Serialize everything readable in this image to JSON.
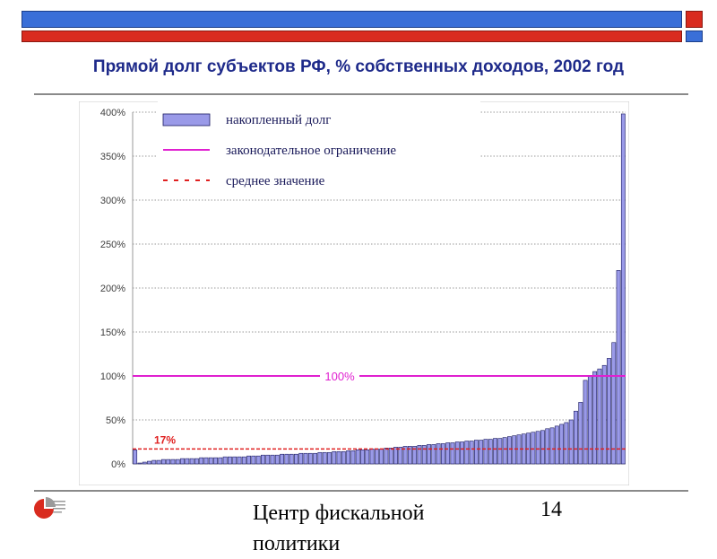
{
  "slide": {
    "title": "Прямой долг субъектов РФ, % собственных доходов, 2002 год",
    "footer": "Центр фискальной политики",
    "page_number": "14",
    "logo_icon": "center-fiscal-policy-logo-icon"
  },
  "colors": {
    "top_bar_blue": "#3a6fd8",
    "top_bar_red": "#d92b1f",
    "title": "#1e2a8a",
    "bar_fill": "#9a9ae8",
    "bar_stroke": "#1a1a60",
    "limit_line": "#e020d0",
    "mean_line": "#e02020"
  },
  "chart_data": {
    "type": "bar",
    "ylim": [
      0,
      400
    ],
    "yticks": [
      "0%",
      "50%",
      "100%",
      "150%",
      "200%",
      "250%",
      "300%",
      "350%",
      "400%"
    ],
    "grid": true,
    "legend_position": "top-left",
    "series": [
      {
        "name": "накопленный долг",
        "values": [
          16,
          1,
          2,
          3,
          4,
          4,
          5,
          5,
          5,
          5,
          6,
          6,
          6,
          6,
          7,
          7,
          7,
          7,
          7,
          8,
          8,
          8,
          8,
          8,
          9,
          9,
          9,
          10,
          10,
          10,
          10,
          11,
          11,
          11,
          11,
          12,
          12,
          12,
          12,
          13,
          13,
          13,
          14,
          14,
          14,
          15,
          15,
          16,
          16,
          16,
          17,
          17,
          17,
          18,
          18,
          19,
          19,
          20,
          20,
          20,
          21,
          21,
          22,
          22,
          23,
          23,
          24,
          24,
          25,
          25,
          26,
          26,
          27,
          27,
          28,
          28,
          29,
          29,
          30,
          31,
          32,
          33,
          34,
          35,
          36,
          37,
          38,
          40,
          41,
          43,
          45,
          47,
          50,
          60,
          70,
          95,
          100,
          105,
          108,
          112,
          120,
          138,
          220,
          398
        ]
      }
    ],
    "reference_lines": [
      {
        "name": "законодательное ограничение",
        "value": 100,
        "label": "100%",
        "style": "solid"
      },
      {
        "name": "среднее значение",
        "value": 17,
        "label": "17%",
        "style": "dashed"
      }
    ]
  }
}
